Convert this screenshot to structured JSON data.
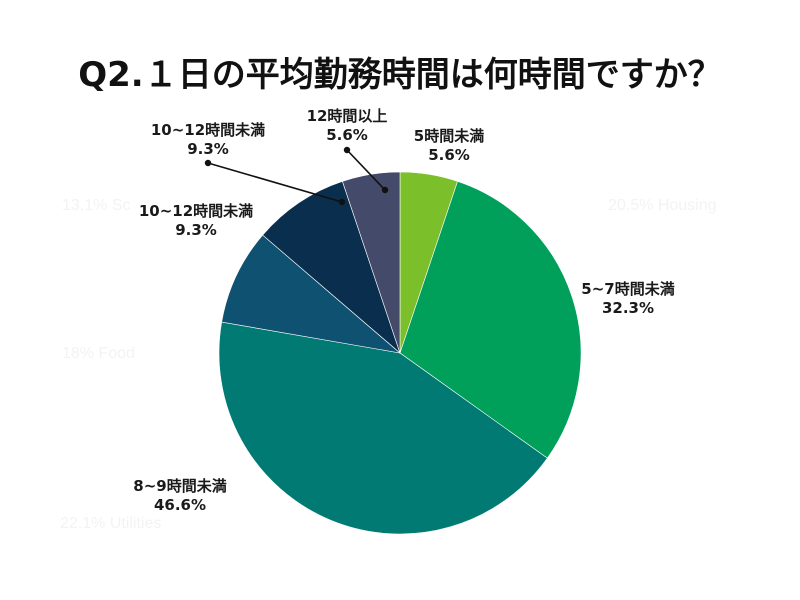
{
  "chart_data": {
    "type": "pie",
    "title": "Q2.１日の平均勤務時間は何時間ですか？",
    "slices": [
      {
        "label": "5時間未満",
        "value": 5.6,
        "display": "5.6%",
        "color": "#7bbf2a"
      },
      {
        "label": "5~7時間未満",
        "value": 32.3,
        "display": "32.3%",
        "color": "#00a05a"
      },
      {
        "label": "8~9時間未満",
        "value": 46.6,
        "display": "46.6%",
        "color": "#017a74"
      },
      {
        "label": "10~12時間未満",
        "value": 9.3,
        "display": "9.3%",
        "color": "#0f5170"
      },
      {
        "label": "10~12時間未満",
        "value": 9.3,
        "display": "9.3%",
        "color": "#0a2f4e"
      },
      {
        "label": "12時間以上",
        "value": 5.6,
        "display": "5.6%",
        "color": "#444b6a"
      }
    ],
    "start": "12 o'clock",
    "direction": "clockwise",
    "legend": "none",
    "faint_background_text": [
      "13.1% Sc",
      "20.5% Housing",
      "18% Food",
      "22.1% Utilities"
    ]
  }
}
